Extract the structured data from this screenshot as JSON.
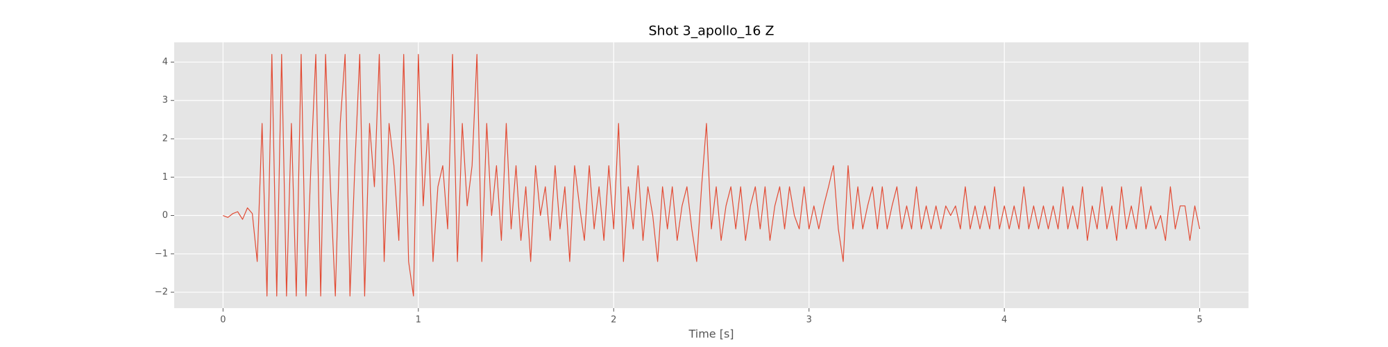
{
  "chart_data": {
    "type": "line",
    "title": "Shot 3_apollo_16 Z",
    "x_label": "Time [s]",
    "color": "#E24A33",
    "grid": true,
    "xlim": [
      -0.25,
      5.25
    ],
    "ylim": [
      -2.415,
      4.515
    ],
    "xticks": [
      0,
      1,
      2,
      3,
      4,
      5
    ],
    "yticks": [
      {
        "value": -2,
        "label": "−2"
      },
      {
        "value": -1,
        "label": "−1"
      },
      0,
      1,
      2,
      3,
      4
    ],
    "x": [
      0,
      0.025,
      0.05,
      0.075,
      0.1,
      0.125,
      0.15,
      0.175,
      0.2,
      0.225,
      0.25,
      0.275,
      0.3,
      0.325,
      0.35,
      0.375,
      0.4,
      0.425,
      0.45,
      0.475,
      0.5,
      0.525,
      0.55,
      0.575,
      0.6,
      0.625,
      0.65,
      0.675,
      0.7,
      0.725,
      0.75,
      0.775,
      0.8,
      0.825,
      0.85,
      0.875,
      0.9,
      0.925,
      0.95,
      0.975,
      1,
      1.025,
      1.05,
      1.075,
      1.1,
      1.125,
      1.15,
      1.175,
      1.2,
      1.225,
      1.25,
      1.275,
      1.3,
      1.325,
      1.35,
      1.375,
      1.4,
      1.425,
      1.45,
      1.475,
      1.5,
      1.525,
      1.55,
      1.575,
      1.6,
      1.625,
      1.65,
      1.675,
      1.7,
      1.725,
      1.75,
      1.775,
      1.8,
      1.825,
      1.85,
      1.875,
      1.9,
      1.925,
      1.95,
      1.975,
      2,
      2.025,
      2.05,
      2.075,
      2.1,
      2.125,
      2.15,
      2.175,
      2.2,
      2.225,
      2.25,
      2.275,
      2.3,
      2.325,
      2.35,
      2.375,
      2.4,
      2.425,
      2.45,
      2.475,
      2.5,
      2.525,
      2.55,
      2.575,
      2.6,
      2.625,
      2.65,
      2.675,
      2.7,
      2.725,
      2.75,
      2.775,
      2.8,
      2.825,
      2.85,
      2.875,
      2.9,
      2.925,
      2.95,
      2.975,
      3,
      3.025,
      3.05,
      3.075,
      3.1,
      3.125,
      3.15,
      3.175,
      3.2,
      3.225,
      3.25,
      3.275,
      3.3,
      3.325,
      3.35,
      3.375,
      3.4,
      3.425,
      3.45,
      3.475,
      3.5,
      3.525,
      3.55,
      3.575,
      3.6,
      3.625,
      3.65,
      3.675,
      3.7,
      3.725,
      3.75,
      3.775,
      3.8,
      3.825,
      3.85,
      3.875,
      3.9,
      3.925,
      3.95,
      3.975,
      4,
      4.025,
      4.05,
      4.075,
      4.1,
      4.125,
      4.15,
      4.175,
      4.2,
      4.225,
      4.25,
      4.275,
      4.3,
      4.325,
      4.35,
      4.375,
      4.4,
      4.425,
      4.45,
      4.475,
      4.5,
      4.525,
      4.55,
      4.575,
      4.6,
      4.625,
      4.65,
      4.675,
      4.7,
      4.725,
      4.75,
      4.775,
      4.8,
      4.825,
      4.85,
      4.875,
      4.9,
      4.925,
      4.95,
      4.975,
      5
    ],
    "values": [
      0,
      -0.05,
      0.05,
      0.1,
      -0.1,
      0.2,
      0.05,
      -1.2,
      2.4,
      -2.1,
      4.2,
      -2.1,
      4.2,
      -2.1,
      2.4,
      -2.1,
      4.2,
      -2.1,
      1.3,
      4.2,
      -2.1,
      4.2,
      0.75,
      -2.1,
      2.4,
      4.2,
      -2.1,
      1.3,
      4.2,
      -2.1,
      2.4,
      0.75,
      4.2,
      -1.2,
      2.4,
      1.3,
      -0.65,
      4.2,
      -1.2,
      -2.1,
      4.2,
      0.25,
      2.4,
      -1.2,
      0.75,
      1.3,
      -0.35,
      4.2,
      -1.2,
      2.4,
      0.25,
      1.3,
      4.2,
      -1.2,
      2.4,
      0,
      1.3,
      -0.65,
      2.4,
      -0.35,
      1.3,
      -0.65,
      0.75,
      -1.2,
      1.3,
      0,
      0.75,
      -0.65,
      1.3,
      -0.35,
      0.75,
      -1.2,
      1.3,
      0.25,
      -0.65,
      1.3,
      -0.35,
      0.75,
      -0.65,
      1.3,
      -0.35,
      2.4,
      -1.2,
      0.75,
      -0.35,
      1.3,
      -0.65,
      0.75,
      0,
      -1.2,
      0.75,
      -0.35,
      0.75,
      -0.65,
      0.25,
      0.75,
      -0.35,
      -1.2,
      0.75,
      2.4,
      -0.35,
      0.75,
      -0.65,
      0.25,
      0.75,
      -0.35,
      0.75,
      -0.65,
      0.25,
      0.75,
      -0.35,
      0.75,
      -0.65,
      0.25,
      0.75,
      -0.35,
      0.75,
      0,
      -0.35,
      0.75,
      -0.35,
      0.25,
      -0.35,
      0.25,
      0.75,
      1.3,
      -0.35,
      -1.2,
      1.3,
      -0.35,
      0.75,
      -0.35,
      0.25,
      0.75,
      -0.35,
      0.75,
      -0.35,
      0.25,
      0.75,
      -0.35,
      0.25,
      -0.35,
      0.75,
      -0.35,
      0.25,
      -0.35,
      0.25,
      -0.35,
      0.25,
      0,
      0.25,
      -0.35,
      0.75,
      -0.35,
      0.25,
      -0.35,
      0.25,
      -0.35,
      0.75,
      -0.35,
      0.25,
      -0.35,
      0.25,
      -0.35,
      0.75,
      -0.35,
      0.25,
      -0.35,
      0.25,
      -0.35,
      0.25,
      -0.35,
      0.75,
      -0.35,
      0.25,
      -0.35,
      0.75,
      -0.65,
      0.25,
      -0.35,
      0.75,
      -0.35,
      0.25,
      -0.65,
      0.75,
      -0.35,
      0.25,
      -0.35,
      0.75,
      -0.35,
      0.25,
      -0.35,
      0,
      -0.65,
      0.75,
      -0.35,
      0.25,
      0.25,
      -0.65,
      0.25,
      -0.35
    ]
  }
}
